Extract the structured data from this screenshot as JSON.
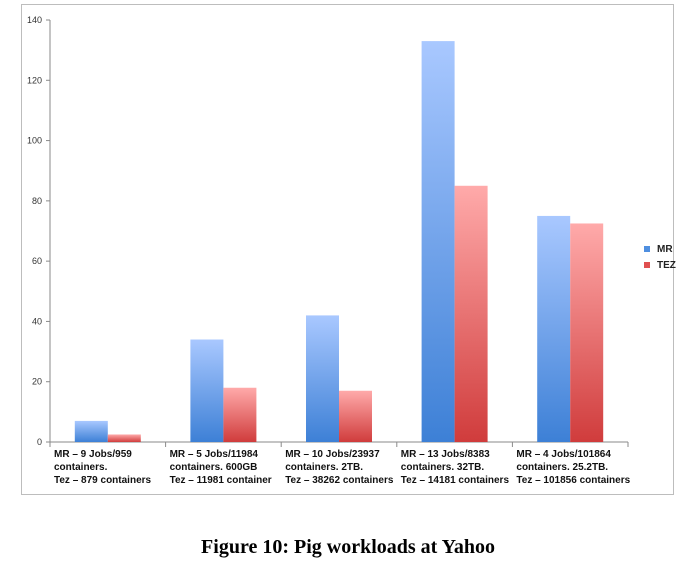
{
  "chart_data": {
    "type": "bar",
    "categories": [
      [
        "MR – 9 Jobs/959",
        "containers.",
        "Tez – 879 containers"
      ],
      [
        "MR – 5 Jobs/11984",
        "containers. 600GB",
        "Tez – 11981 container"
      ],
      [
        "MR – 10 Jobs/23937",
        "containers. 2TB.",
        "Tez – 38262 containers"
      ],
      [
        "MR – 13 Jobs/8383",
        "containers. 32TB.",
        "Tez – 14181 containers"
      ],
      [
        "MR – 4 Jobs/101864",
        "containers. 25.2TB.",
        "Tez – 101856 containers"
      ]
    ],
    "series": [
      {
        "name": "MR",
        "values": [
          7,
          34,
          42,
          133,
          75
        ],
        "color_top": "#a9c8ff",
        "color_bottom": "#3d80d6"
      },
      {
        "name": "TEZ",
        "values": [
          2.5,
          18,
          17,
          85,
          72.5
        ],
        "color_top": "#ffaaaa",
        "color_bottom": "#d03c3c"
      }
    ],
    "ylim": [
      0,
      140
    ],
    "yticks": [
      "0",
      "20",
      "40",
      "60",
      "80",
      "100",
      "120",
      "140"
    ],
    "grid": false,
    "legend_position": "right"
  },
  "caption": "Figure 10: Pig workloads at Yahoo"
}
